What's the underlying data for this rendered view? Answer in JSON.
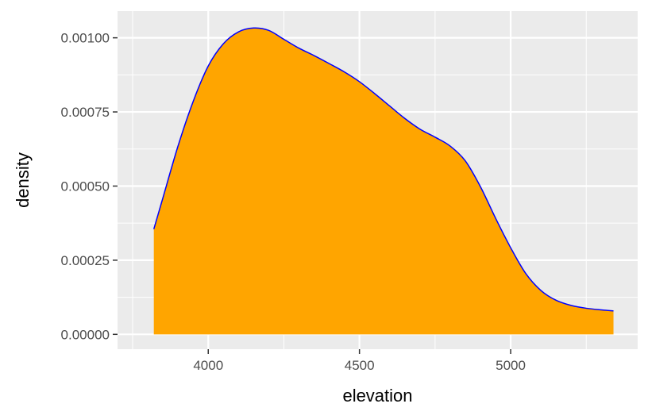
{
  "chart_data": {
    "type": "area",
    "title": "",
    "xlabel": "elevation",
    "ylabel": "density",
    "xlim": [
      3700,
      5420
    ],
    "ylim": [
      -5e-05,
      0.00109
    ],
    "x_ticks": [
      {
        "value": 4000,
        "label": "4000"
      },
      {
        "value": 4500,
        "label": "4500"
      },
      {
        "value": 5000,
        "label": "5000"
      }
    ],
    "x_minor_ticks": [
      3750,
      4250,
      4750,
      5250
    ],
    "y_ticks": [
      {
        "value": 0,
        "label": "0.00000"
      },
      {
        "value": 0.00025,
        "label": "0.00025"
      },
      {
        "value": 0.0005,
        "label": "0.00050"
      },
      {
        "value": 0.00075,
        "label": "0.00075"
      },
      {
        "value": 0.001,
        "label": "0.00100"
      }
    ],
    "y_minor_ticks": [
      0.000125,
      0.000375,
      0.000625,
      0.000875
    ],
    "grid": true,
    "background_color": "#ebebeb",
    "gridline_color": "#ffffff",
    "fill_color": "#ffa500",
    "line_color": "#0000ff",
    "x": [
      3820,
      3850,
      3900,
      3950,
      4000,
      4050,
      4100,
      4150,
      4200,
      4250,
      4300,
      4350,
      4400,
      4450,
      4500,
      4550,
      4600,
      4650,
      4700,
      4750,
      4800,
      4850,
      4900,
      4950,
      5000,
      5050,
      5100,
      5150,
      5200,
      5250,
      5300,
      5340
    ],
    "values": [
      0.000355,
      0.00046,
      0.000635,
      0.000785,
      0.000905,
      0.00098,
      0.00102,
      0.001033,
      0.001025,
      0.000995,
      0.000965,
      0.00094,
      0.000913,
      0.000885,
      0.000852,
      0.000812,
      0.00077,
      0.000728,
      0.000692,
      0.000665,
      0.000635,
      0.000585,
      0.000498,
      0.000392,
      0.000292,
      0.000205,
      0.000148,
      0.000115,
      9.75e-05,
      8.8e-05,
      8.25e-05,
      7.9e-05
    ]
  }
}
